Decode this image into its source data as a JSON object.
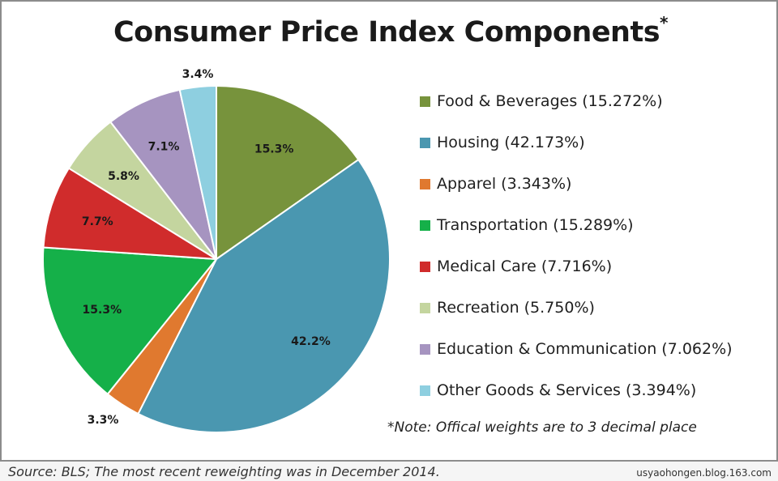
{
  "chart_data": {
    "type": "pie",
    "title": "Consumer Price Index Components",
    "title_marker": "*",
    "slices": [
      {
        "name": "Food & Beverages",
        "legend": "Food & Beverages (15.272%)",
        "value": 15.272,
        "label": "15.3%",
        "color": "#77933c"
      },
      {
        "name": "Housing",
        "legend": "Housing (42.173%)",
        "value": 42.173,
        "label": "42.2%",
        "color": "#4a97b0"
      },
      {
        "name": "Apparel",
        "legend": "Apparel (3.343%)",
        "value": 3.343,
        "label": "3.3%",
        "color": "#e0792f"
      },
      {
        "name": "Transportation",
        "legend": "Transportation (15.289%)",
        "value": 15.289,
        "label": "15.3%",
        "color": "#15b049"
      },
      {
        "name": "Medical Care",
        "legend": "Medical Care (7.716%)",
        "value": 7.716,
        "label": "7.7%",
        "color": "#d02c2c"
      },
      {
        "name": "Recreation",
        "legend": "Recreation (5.750%)",
        "value": 5.75,
        "label": "5.8%",
        "color": "#c4d59f"
      },
      {
        "name": "Education & Communication",
        "legend": "Education & Communication (7.062%)",
        "value": 7.062,
        "label": "7.1%",
        "color": "#a694c0"
      },
      {
        "name": "Other Goods & Services",
        "legend": "Other Goods & Services (3.394%)",
        "value": 3.394,
        "label": "3.4%",
        "color": "#8ecfe0"
      }
    ],
    "legend_position": "right",
    "note": "*Note: Offical weights are to 3 decimal place"
  },
  "source": "Source: BLS; The most recent reweighting was in December 2014.",
  "watermark": "usyaohongen.blog.163.com"
}
